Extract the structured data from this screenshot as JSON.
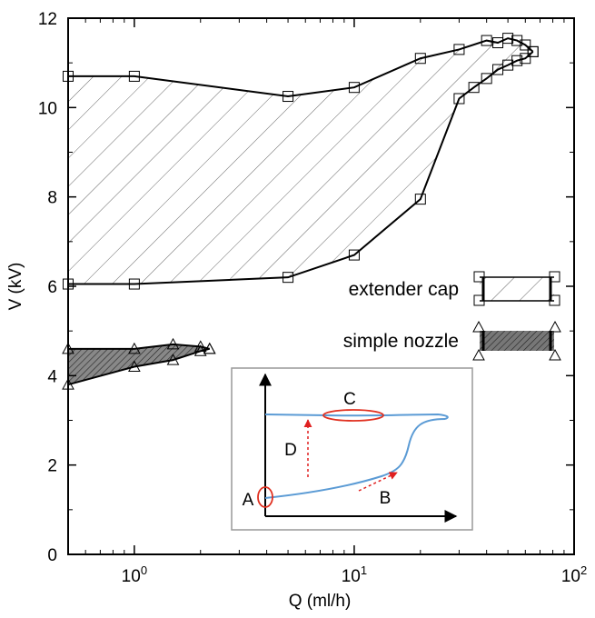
{
  "chart_data": {
    "type": "area",
    "xlabel": "Q (ml/h)",
    "ylabel": "V (kV)",
    "x_scale": "log",
    "xlim": [
      0.5,
      100
    ],
    "ylim": [
      0,
      12
    ],
    "x_ticks": [
      {
        "value": 1,
        "label": "10",
        "exp": "0"
      },
      {
        "value": 10,
        "label": "10",
        "exp": "1"
      },
      {
        "value": 100,
        "label": "10",
        "exp": "2"
      }
    ],
    "y_ticks": [
      0,
      2,
      4,
      6,
      8,
      10,
      12
    ],
    "grid": false,
    "legend_position": "right",
    "series": [
      {
        "name": "extender cap",
        "marker": "square",
        "fill": "hatched",
        "upper": {
          "x": [
            0.5,
            1,
            5,
            10,
            20,
            30,
            40,
            45,
            50,
            55,
            60,
            65
          ],
          "y": [
            10.7,
            10.7,
            10.25,
            10.45,
            11.1,
            11.3,
            11.5,
            11.45,
            11.55,
            11.5,
            11.4,
            11.25
          ]
        },
        "lower": {
          "x": [
            0.5,
            1,
            5,
            10,
            20,
            30,
            35,
            40,
            45,
            50,
            55,
            60,
            65
          ],
          "y": [
            6.05,
            6.05,
            6.2,
            6.7,
            7.95,
            10.2,
            10.45,
            10.65,
            10.85,
            10.95,
            11.05,
            11.1,
            11.25
          ]
        }
      },
      {
        "name": "simple nozzle",
        "marker": "triangle",
        "fill": "dense-hatched",
        "upper": {
          "x": [
            0.5,
            1,
            1.5,
            2,
            2.2
          ],
          "y": [
            4.6,
            4.6,
            4.7,
            4.65,
            4.6
          ]
        },
        "lower": {
          "x": [
            0.5,
            1,
            1.5,
            2,
            2.2
          ],
          "y": [
            3.8,
            4.2,
            4.35,
            4.55,
            4.6
          ]
        }
      }
    ],
    "inset": {
      "labels": {
        "A": "A",
        "B": "B",
        "C": "C",
        "D": "D"
      }
    }
  }
}
